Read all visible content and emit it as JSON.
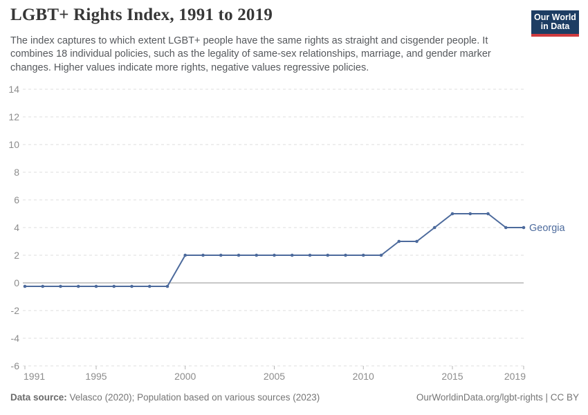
{
  "header": {
    "title": "LGBT+ Rights Index, 1991 to 2019",
    "subtitle": "The index captures to which extent LGBT+ people have the same rights as straight and cisgender people. It combines 18 individual policies, such as the legality of same-sex relationships, marriage, and gender marker changes. Higher values indicate more rights, negative values regressive policies.",
    "logo": {
      "line1": "Our World",
      "line2": "in Data",
      "bg_color": "#1d3d63",
      "accent_color": "#cf3a3e"
    }
  },
  "chart_data": {
    "type": "line",
    "title": "LGBT+ Rights Index, 1991 to 2019",
    "xlabel": "",
    "ylabel": "",
    "xlim": [
      1991,
      2019
    ],
    "ylim": [
      -6,
      14
    ],
    "x_ticks": [
      1991,
      1995,
      2000,
      2005,
      2010,
      2015,
      2019
    ],
    "y_ticks": [
      14,
      12,
      10,
      8,
      6,
      4,
      2,
      0,
      -2,
      -4,
      -6
    ],
    "grid": "horizontal-dashed",
    "zero_line": true,
    "legend_position": "end-of-line",
    "series": [
      {
        "name": "Georgia",
        "color": "#4c6a9c",
        "x": [
          1991,
          1992,
          1993,
          1994,
          1995,
          1996,
          1997,
          1998,
          1999,
          2000,
          2001,
          2002,
          2003,
          2004,
          2005,
          2006,
          2007,
          2008,
          2009,
          2010,
          2011,
          2012,
          2013,
          2014,
          2015,
          2016,
          2017,
          2018,
          2019
        ],
        "values": [
          -0.25,
          -0.25,
          -0.25,
          -0.25,
          -0.25,
          -0.25,
          -0.25,
          -0.25,
          -0.25,
          2,
          2,
          2,
          2,
          2,
          2,
          2,
          2,
          2,
          2,
          2,
          2,
          3,
          3,
          4,
          5,
          5,
          5,
          4,
          4
        ]
      }
    ],
    "colors": {
      "gridline": "#dcdcdc",
      "zero_line": "#a8a8a8",
      "tick_mark": "#b5b5b5",
      "axis_label": "#8c8c8c"
    }
  },
  "footer": {
    "source_label": "Data source:",
    "source_text": " Velasco (2020); Population based on various sources (2023)",
    "link_text": "OurWorldinData.org/lgbt-rights | CC BY"
  }
}
